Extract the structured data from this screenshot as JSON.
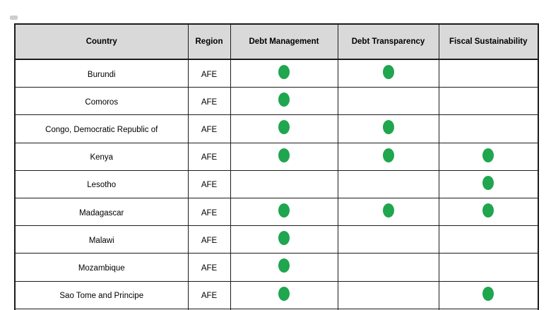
{
  "chart_data": {
    "type": "table",
    "columns": [
      "Country",
      "Region",
      "Debt Management",
      "Debt Transparency",
      "Fiscal Sustainability"
    ],
    "rows": [
      {
        "country": "Burundi",
        "region": "AFE",
        "debt_management": true,
        "debt_transparency": true,
        "fiscal_sustainability": false
      },
      {
        "country": "Comoros",
        "region": "AFE",
        "debt_management": true,
        "debt_transparency": false,
        "fiscal_sustainability": false
      },
      {
        "country": "Congo, Democratic Republic of",
        "region": "AFE",
        "debt_management": true,
        "debt_transparency": true,
        "fiscal_sustainability": false
      },
      {
        "country": "Kenya",
        "region": "AFE",
        "debt_management": true,
        "debt_transparency": true,
        "fiscal_sustainability": true
      },
      {
        "country": "Lesotho",
        "region": "AFE",
        "debt_management": false,
        "debt_transparency": false,
        "fiscal_sustainability": true
      },
      {
        "country": "Madagascar",
        "region": "AFE",
        "debt_management": true,
        "debt_transparency": true,
        "fiscal_sustainability": true
      },
      {
        "country": "Malawi",
        "region": "AFE",
        "debt_management": true,
        "debt_transparency": false,
        "fiscal_sustainability": false
      },
      {
        "country": "Mozambique",
        "region": "AFE",
        "debt_management": true,
        "debt_transparency": false,
        "fiscal_sustainability": false
      },
      {
        "country": "Sao Tome and Principe",
        "region": "AFE",
        "debt_management": true,
        "debt_transparency": false,
        "fiscal_sustainability": true
      }
    ],
    "marker": "green-dot",
    "layout": {
      "grid": true,
      "header_shaded": true
    }
  },
  "colors": {
    "dot_green": "#1FA64E",
    "header_bg": "#D9D9D9",
    "border": "#1C1C1C",
    "text": "#000000",
    "background": "#FFFFFF"
  }
}
